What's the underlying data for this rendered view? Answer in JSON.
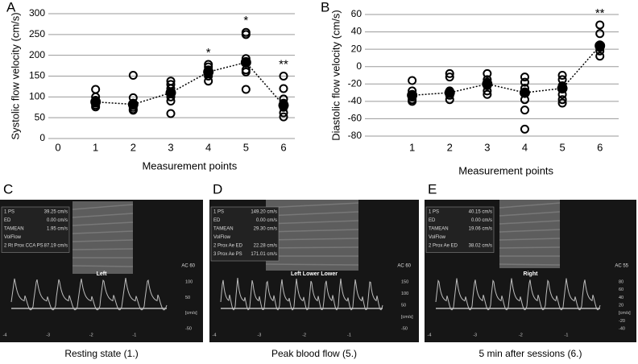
{
  "chart_data": [
    {
      "type": "scatter",
      "label": "A",
      "ylabel": "Systolic flow velocity (cm/s)",
      "xlabel": "Measurement points",
      "xlim": [
        0,
        6.3
      ],
      "xticks": [
        0,
        1,
        2,
        3,
        4,
        5,
        6
      ],
      "ylim": [
        0,
        300
      ],
      "yticks": [
        0,
        50,
        100,
        150,
        200,
        250,
        300
      ],
      "grid": true,
      "series": [
        {
          "marker": "open",
          "color": "#000000",
          "x": [
            1,
            1,
            1,
            1,
            1,
            1,
            1,
            2,
            2,
            2,
            2,
            2,
            2,
            2,
            3,
            3,
            3,
            3,
            3,
            3,
            3,
            4,
            4,
            4,
            4,
            4,
            4,
            4,
            5,
            5,
            5,
            5,
            5,
            5,
            5,
            6,
            6,
            6,
            6,
            6,
            6,
            6
          ],
          "values": [
            118,
            100,
            92,
            88,
            85,
            80,
            76,
            152,
            98,
            85,
            80,
            75,
            70,
            68,
            138,
            130,
            120,
            110,
            100,
            90,
            60,
            178,
            172,
            165,
            160,
            155,
            150,
            138,
            255,
            250,
            192,
            185,
            165,
            160,
            118,
            150,
            120,
            95,
            85,
            75,
            62,
            52
          ]
        },
        {
          "marker": "filled",
          "line": "dotted",
          "color": "#000000",
          "x": [
            1,
            2,
            3,
            4,
            5,
            6
          ],
          "values": [
            88,
            82,
            110,
            160,
            183,
            80
          ]
        }
      ],
      "annotations": [
        {
          "text": "*",
          "x": 4
        },
        {
          "text": "*",
          "x": 5
        },
        {
          "text": "**",
          "x": 6
        }
      ]
    },
    {
      "type": "scatter",
      "label": "B",
      "ylabel": "Diastolic flow velocity (cm/s)",
      "xlabel": "Measurement points",
      "xlim": [
        0,
        6.5
      ],
      "xticks": [
        1,
        2,
        3,
        4,
        5,
        6
      ],
      "ylim": [
        -80,
        60
      ],
      "yticks": [
        -80,
        -60,
        -40,
        -20,
        0,
        20,
        40,
        60
      ],
      "grid": true,
      "series": [
        {
          "marker": "open",
          "color": "#000000",
          "x": [
            1,
            1,
            1,
            1,
            1,
            1,
            2,
            2,
            2,
            2,
            2,
            2,
            3,
            3,
            3,
            3,
            3,
            3,
            4,
            4,
            4,
            4,
            4,
            4,
            4,
            5,
            5,
            5,
            5,
            5,
            5,
            6,
            6,
            6,
            6,
            6,
            6
          ],
          "values": [
            -16,
            -28,
            -32,
            -35,
            -38,
            -40,
            -8,
            -12,
            -28,
            -30,
            -33,
            -38,
            -8,
            -15,
            -18,
            -22,
            -28,
            -32,
            -12,
            -18,
            -25,
            -30,
            -38,
            -50,
            -72,
            -10,
            -15,
            -22,
            -32,
            -38,
            -42,
            48,
            38,
            25,
            22,
            18,
            12
          ]
        },
        {
          "marker": "filled",
          "line": "dotted",
          "color": "#000000",
          "x": [
            1,
            2,
            3,
            4,
            5,
            6
          ],
          "values": [
            -33,
            -30,
            -20,
            -30,
            -25,
            24
          ]
        }
      ],
      "annotations": [
        {
          "text": "**",
          "x": 6
        }
      ]
    }
  ],
  "panels": [
    {
      "label": "C",
      "caption": "Resting state (1.)",
      "view": "Left",
      "ac": "AC 60",
      "rows": [
        [
          "1 PS",
          "39.25 cm/s"
        ],
        [
          "ED",
          "0.00 cm/s"
        ],
        [
          "TAMEAN",
          "1.95 cm/s"
        ],
        [
          "VolFlow",
          ""
        ],
        [
          "2 Rt Prox CCA PS",
          "87.19 cm/s"
        ]
      ],
      "scale": [
        "100",
        "50",
        "[cm/s]",
        "-50"
      ],
      "time": [
        "-4",
        "-3",
        "-2",
        "-1"
      ]
    },
    {
      "label": "D",
      "caption": "Peak blood flow (5.)",
      "view": "Left Lower Lower",
      "ac": "AC 60",
      "rows": [
        [
          "1 PS",
          "149.20 cm/s"
        ],
        [
          "ED",
          "0.00 cm/s"
        ],
        [
          "TAMEAN",
          "29.30 cm/s"
        ],
        [
          "VolFlow",
          ""
        ],
        [
          "2 Prox Ae ED",
          "22.28 cm/s"
        ],
        [
          "3 Prox Ae PS",
          "171.01 cm/s"
        ]
      ],
      "scale": [
        "150",
        "100",
        "50",
        "[cm/s]",
        "-50"
      ],
      "time": [
        "-4",
        "-3",
        "-2",
        "-1"
      ]
    },
    {
      "label": "E",
      "caption": "5 min after sessions (6.)",
      "view": "Right",
      "ac": "AC 55",
      "rows": [
        [
          "1 PS",
          "40.15 cm/s"
        ],
        [
          "ED",
          "0.00 cm/s"
        ],
        [
          "TAMEAN",
          "19.06 cm/s"
        ],
        [
          "VolFlow",
          ""
        ],
        [
          "2 Prox Ae ED",
          "38.02 cm/s"
        ]
      ],
      "scale": [
        "80",
        "60",
        "40",
        "20",
        "[cm/s]",
        "-20",
        "-40"
      ],
      "time": [
        "-4",
        "-3",
        "-2",
        "-1"
      ]
    }
  ]
}
